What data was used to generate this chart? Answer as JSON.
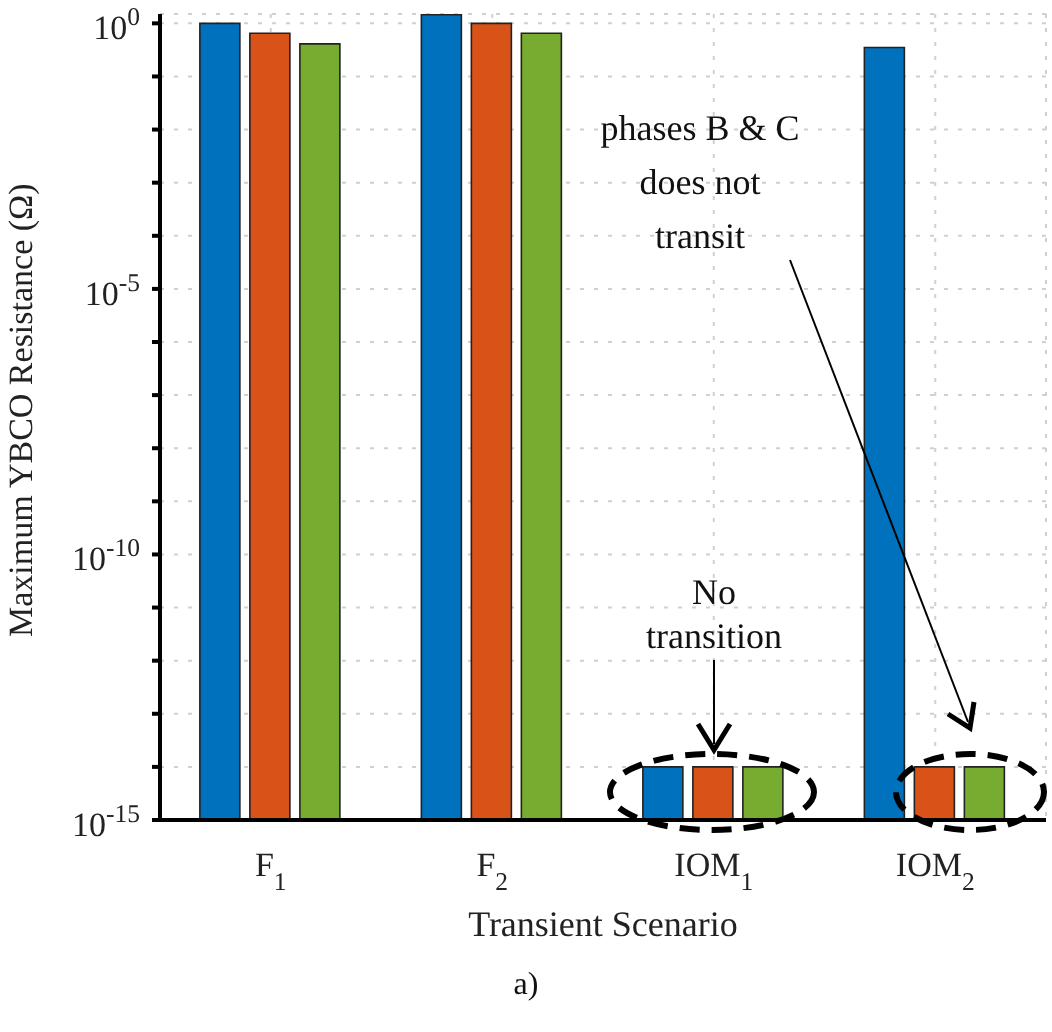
{
  "chart_data": {
    "type": "bar",
    "xlabel": "Transient Scenario",
    "ylabel": "Maximum YBCO Resistance (Ω)",
    "categories": [
      "F$_{1}$",
      "F$_{2}$",
      "IOM$_{1}$",
      "IOM$_{2}$"
    ],
    "series": [
      {
        "color": "#0072bd",
        "values": [
          1.0,
          1.45,
          1e-14,
          0.35
        ]
      },
      {
        "color": "#d95319",
        "values": [
          0.65,
          1.0,
          1e-14,
          1e-14
        ]
      },
      {
        "color": "#77ac30",
        "values": [
          0.41,
          0.65,
          1e-14,
          1e-14
        ]
      }
    ],
    "log": true,
    "ylim": [
      1e-15,
      1.5
    ],
    "yticks": [
      {
        "value": 1e-15,
        "label": "10$^{-15}$"
      },
      {
        "value": 1e-14,
        "label": null
      },
      {
        "value": 1e-13,
        "label": null
      },
      {
        "value": 1e-12,
        "label": null
      },
      {
        "value": 1e-11,
        "label": null
      },
      {
        "value": 1e-10,
        "label": "10$^{-10}$"
      },
      {
        "value": 1e-09,
        "label": null
      },
      {
        "value": 1e-08,
        "label": null
      },
      {
        "value": 1e-07,
        "label": null
      },
      {
        "value": 1e-06,
        "label": null
      },
      {
        "value": 1e-05,
        "label": "10$^{-5}$"
      },
      {
        "value": 0.0001,
        "label": null
      },
      {
        "value": 0.001,
        "label": null
      },
      {
        "value": 0.01,
        "label": null
      },
      {
        "value": 0.1,
        "label": null
      },
      {
        "value": 1,
        "label": "10$^{0}$"
      }
    ],
    "grid": true,
    "annotations": [
      "No transition",
      "phases B & C does not transit",
      "a)"
    ]
  }
}
